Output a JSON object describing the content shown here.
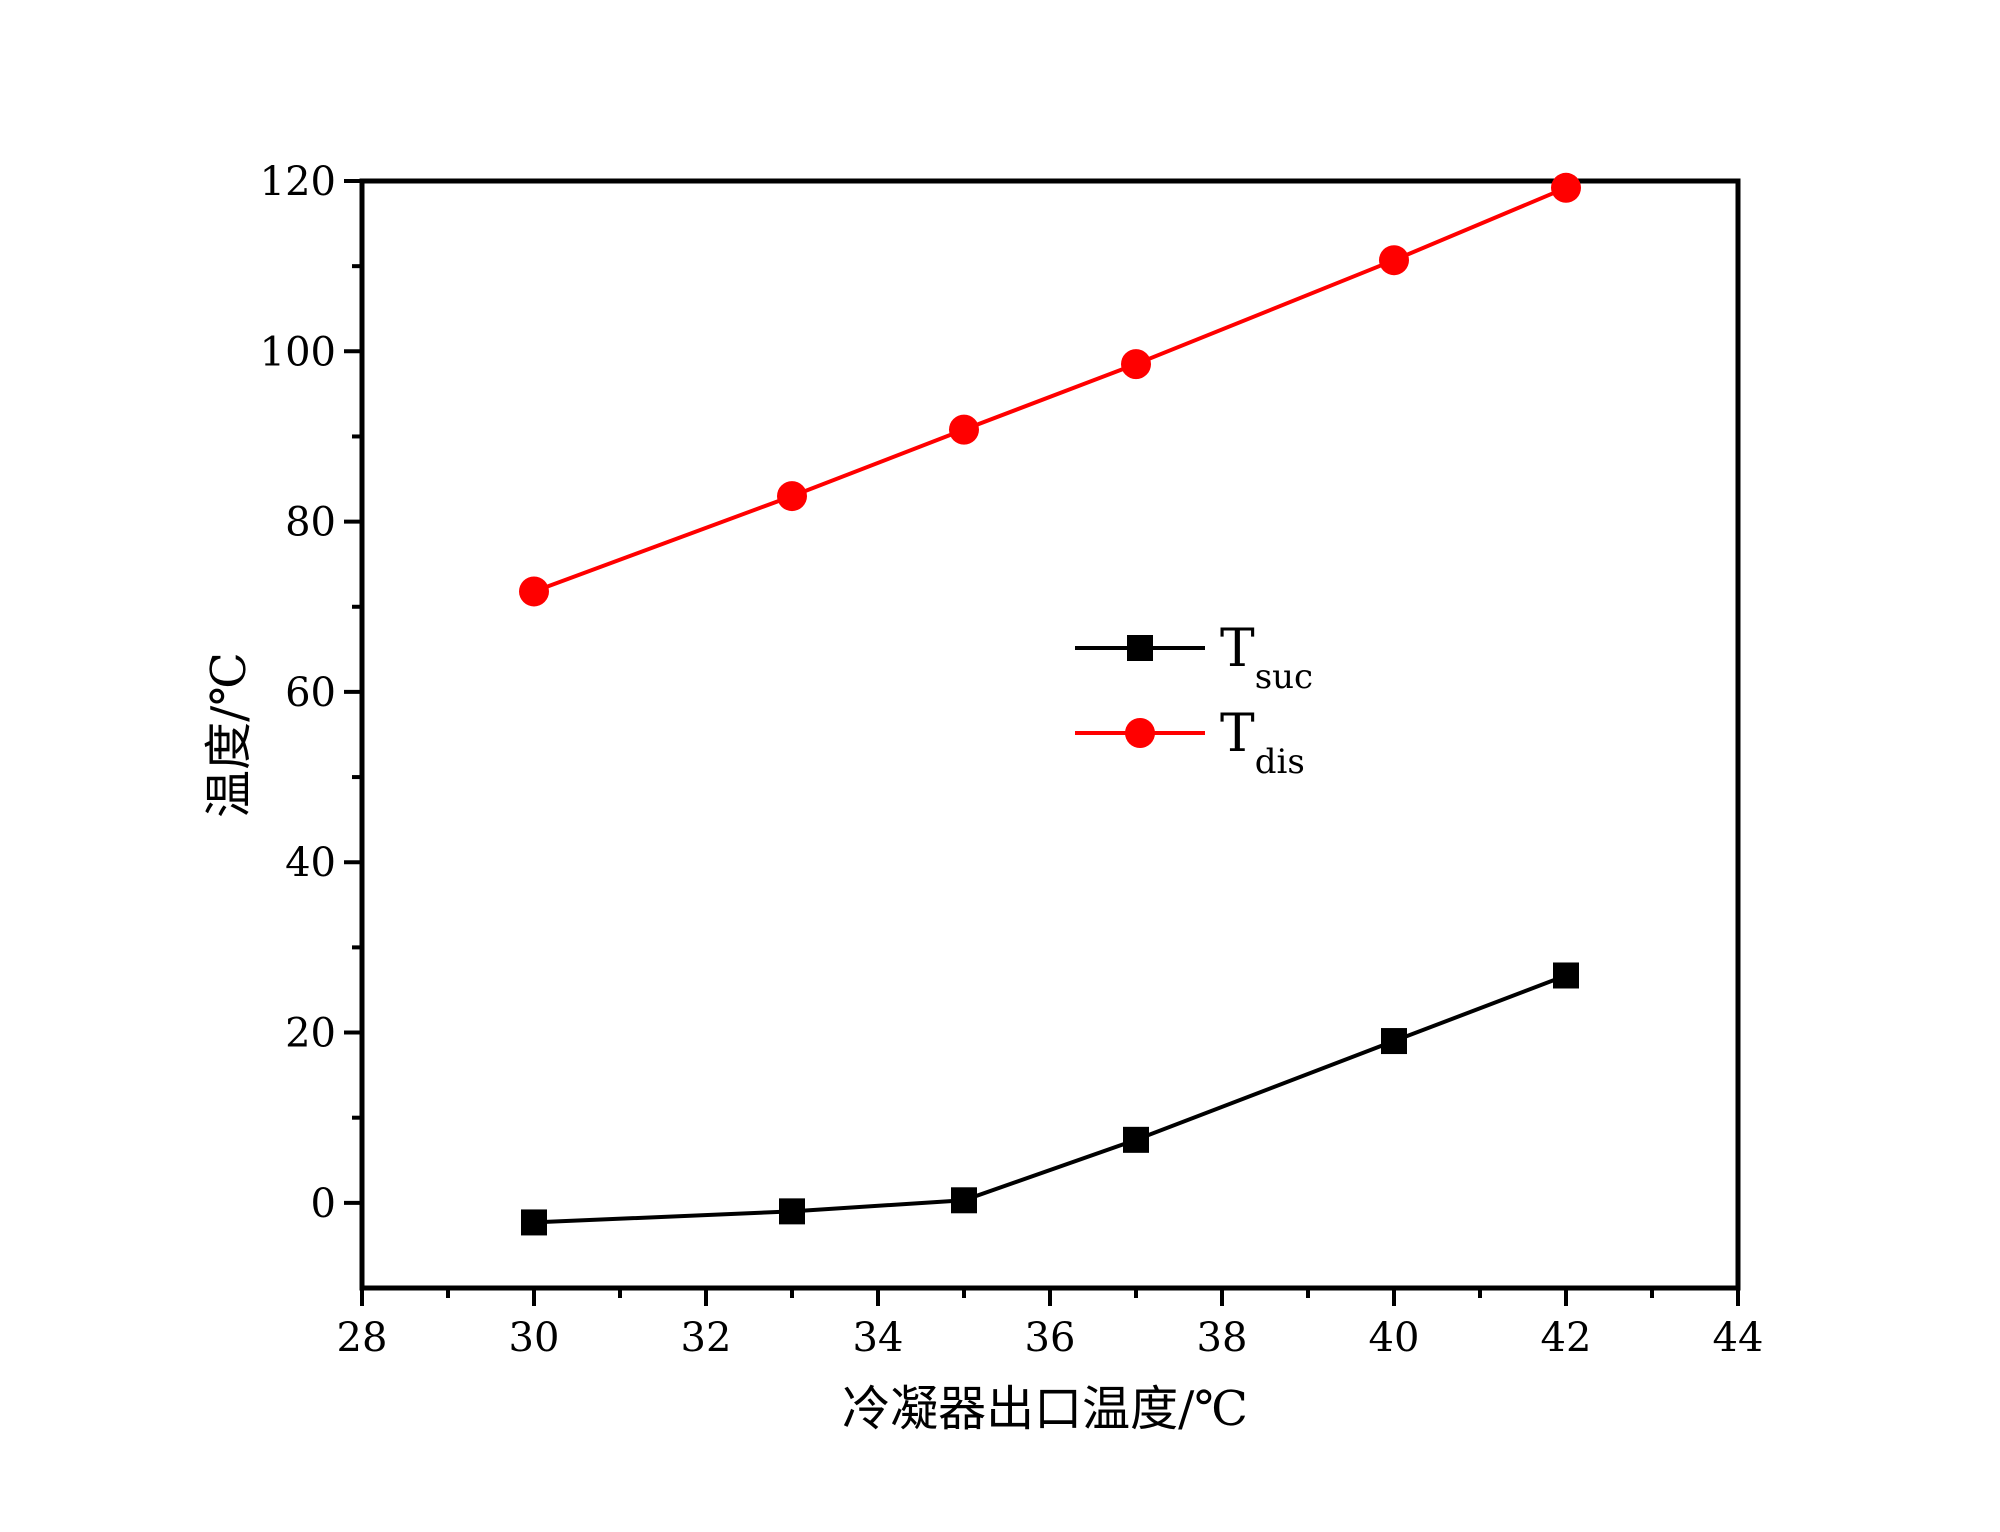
{
  "chart_data": {
    "type": "line",
    "xlabel": "冷凝器出口温度/℃",
    "ylabel": "温度/℃",
    "xlim": [
      28,
      44
    ],
    "ylim": [
      -10,
      120
    ],
    "xticks": [
      28,
      30,
      32,
      34,
      36,
      38,
      40,
      42,
      44
    ],
    "yticks": [
      0,
      20,
      40,
      60,
      80,
      100,
      120
    ],
    "grid": false,
    "legend_position": "center-right",
    "series": [
      {
        "name": "T",
        "subscript": "suc",
        "color": "#000000",
        "marker": "square",
        "x": [
          30,
          33,
          35,
          37,
          40,
          42
        ],
        "y": [
          -2.3,
          -1.0,
          0.3,
          7.4,
          19.0,
          26.7
        ]
      },
      {
        "name": "T",
        "subscript": "dis",
        "color": "#ff0000",
        "marker": "circle",
        "x": [
          30,
          33,
          35,
          37,
          40,
          42
        ],
        "y": [
          71.8,
          83.0,
          90.8,
          98.5,
          110.7,
          119.2
        ]
      }
    ]
  }
}
